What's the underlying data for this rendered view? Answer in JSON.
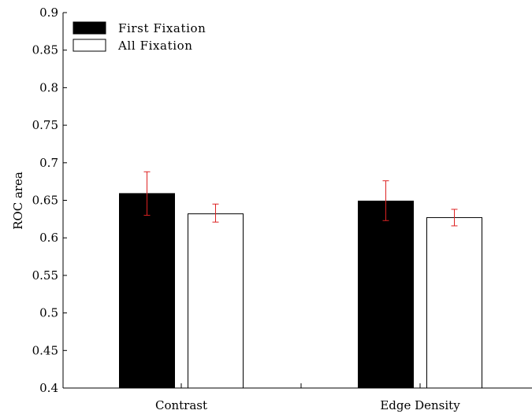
{
  "chart_data": {
    "type": "bar",
    "categories": [
      "Contrast",
      "Edge Density"
    ],
    "series": [
      {
        "name": "First Fixation",
        "color": "#000000",
        "values": [
          0.659,
          0.649
        ],
        "error_low": [
          0.63,
          0.623
        ],
        "error_high": [
          0.688,
          0.676
        ]
      },
      {
        "name": "All Fixation",
        "color": "#ffffff",
        "values": [
          0.632,
          0.627
        ],
        "error_low": [
          0.621,
          0.616
        ],
        "error_high": [
          0.645,
          0.638
        ]
      }
    ],
    "error_bar_color": "#dd2222",
    "title": "",
    "xlabel": "",
    "ylabel": "ROC area",
    "ylim": [
      0.4,
      0.9
    ],
    "yticks": [
      "0.4",
      "0.45",
      "0.5",
      "0.55",
      "0.6",
      "0.65",
      "0.7",
      "0.75",
      "0.8",
      "0.85",
      "0.9"
    ],
    "grid": false,
    "legend_position": "top-left"
  }
}
